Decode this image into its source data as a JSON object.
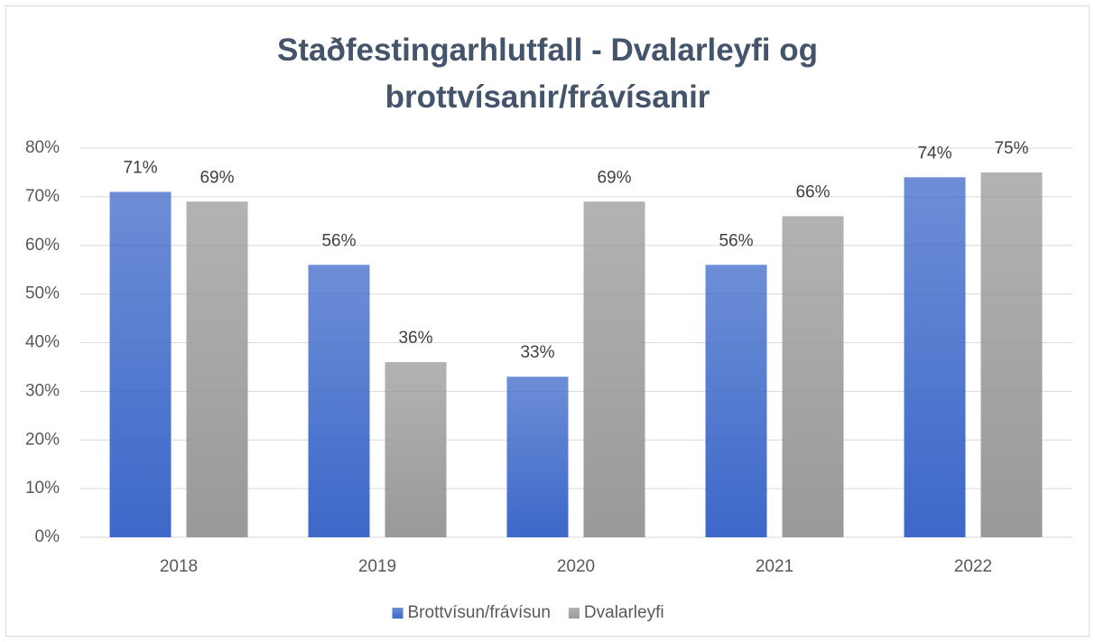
{
  "chart_data": {
    "type": "bar",
    "title": "Staðfestingarhlutfall - Dvalarleyfi og brottvísanir/frávísanir",
    "categories": [
      "2018",
      "2019",
      "2020",
      "2021",
      "2022"
    ],
    "series": [
      {
        "name": "Brottvísun/frávísun",
        "color": "#3d68c9",
        "values": [
          71,
          56,
          33,
          56,
          74
        ],
        "value_labels": [
          "71%",
          "56%",
          "33%",
          "56%",
          "74%"
        ]
      },
      {
        "name": "Dvalarleyfi",
        "color": "#999999",
        "values": [
          69,
          36,
          69,
          66,
          75
        ],
        "value_labels": [
          "69%",
          "36%",
          "69%",
          "66%",
          "75%"
        ]
      }
    ],
    "ylim": [
      0,
      80
    ],
    "yticks": [
      {
        "value": 0,
        "label": "0%"
      },
      {
        "value": 10,
        "label": "10%"
      },
      {
        "value": 20,
        "label": "20%"
      },
      {
        "value": 30,
        "label": "30%"
      },
      {
        "value": 40,
        "label": "40%"
      },
      {
        "value": 50,
        "label": "50%"
      },
      {
        "value": 60,
        "label": "60%"
      },
      {
        "value": 70,
        "label": "70%"
      },
      {
        "value": 80,
        "label": "80%"
      }
    ],
    "grid": true,
    "legend": "bottom"
  }
}
